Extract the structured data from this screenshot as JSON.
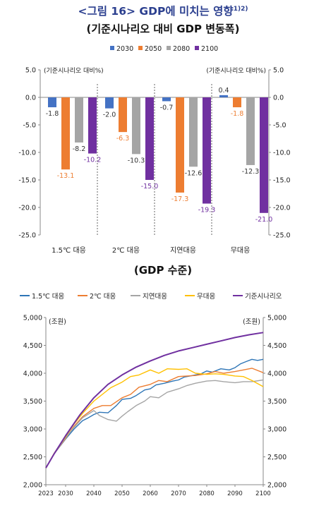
{
  "figure_title": "<그림 16> GDP에 미치는 영향",
  "figure_title_sup": "1)2)",
  "colors": {
    "s2030": "#4472c4",
    "s2050": "#ed7d31",
    "s2080": "#a5a5a5",
    "s2100": "#7030a0",
    "line1": "#2e75b6",
    "line2": "#ed7d31",
    "line3": "#a5a5a5",
    "line4": "#ffc000",
    "line5": "#7030a0"
  },
  "chart_data": [
    {
      "type": "bar",
      "title": "(기준시나리오 대비 GDP 변동폭)",
      "left_unit": "(기준시나리오 대비%)",
      "right_unit": "(기준시나리오 대비%)",
      "categories": [
        "1.5℃ 대응",
        "2℃ 대응",
        "지연대응",
        "무대응"
      ],
      "ylim": [
        -25.0,
        5.0
      ],
      "yticks": [
        "5.0",
        "0.0",
        "-5.0",
        "-10.0",
        "-15.0",
        "-20.0",
        "-25.0"
      ],
      "series": [
        {
          "name": "2030",
          "values": [
            -1.8,
            -2.0,
            -0.7,
            0.4
          ],
          "labels": [
            "-1.8",
            "-2.0",
            "-0.7",
            "0.4"
          ]
        },
        {
          "name": "2050",
          "values": [
            -13.1,
            -6.3,
            -17.3,
            -1.8
          ],
          "labels": [
            "-13.1",
            "-6.3",
            "-17.3",
            "-1.8"
          ]
        },
        {
          "name": "2080",
          "values": [
            -8.2,
            -10.3,
            -12.6,
            -12.3
          ],
          "labels": [
            "-8.2",
            "-10.3",
            "-12.6",
            "-12.3"
          ]
        },
        {
          "name": "2100",
          "values": [
            -10.2,
            -15.0,
            -19.3,
            -21.0
          ],
          "labels": [
            "-10.2",
            "-15.0",
            "-19.3",
            "-21.0"
          ]
        }
      ],
      "grid": false,
      "legend": "top"
    },
    {
      "type": "line",
      "title": "(GDP 수준)",
      "left_unit": "(조원)",
      "right_unit": "(조원)",
      "x_ticks": [
        "2023",
        "2030",
        "2040",
        "2050",
        "2060",
        "2070",
        "2080",
        "2090",
        "2100"
      ],
      "ylim": [
        2000,
        5000
      ],
      "yticks": [
        "5,000",
        "4,500",
        "4,000",
        "3,500",
        "3,000",
        "2,500",
        "2,000"
      ],
      "legend": "top",
      "grid": false,
      "series": [
        {
          "name": "1.5℃ 대응",
          "x": [
            2023,
            2026,
            2030,
            2033,
            2036,
            2038,
            2040,
            2042,
            2045,
            2048,
            2050,
            2053,
            2055,
            2058,
            2060,
            2062,
            2065,
            2068,
            2070,
            2072,
            2075,
            2078,
            2080,
            2082,
            2085,
            2088,
            2090,
            2092,
            2094,
            2096,
            2098,
            2100
          ],
          "y": [
            2300,
            2560,
            2820,
            3000,
            3150,
            3200,
            3260,
            3300,
            3290,
            3420,
            3530,
            3550,
            3600,
            3700,
            3720,
            3790,
            3820,
            3860,
            3880,
            3930,
            3960,
            3990,
            4040,
            4020,
            4080,
            4060,
            4100,
            4170,
            4210,
            4250,
            4230,
            4250
          ]
        },
        {
          "name": "2℃ 대응",
          "x": [
            2023,
            2026,
            2030,
            2033,
            2036,
            2040,
            2043,
            2046,
            2050,
            2053,
            2056,
            2060,
            2063,
            2066,
            2070,
            2073,
            2076,
            2080,
            2083,
            2086,
            2090,
            2093,
            2096,
            2100
          ],
          "y": [
            2300,
            2560,
            2830,
            3050,
            3220,
            3370,
            3420,
            3420,
            3560,
            3620,
            3750,
            3800,
            3870,
            3850,
            3940,
            3950,
            3960,
            3990,
            4030,
            4000,
            4030,
            4060,
            4090,
            4010
          ]
        },
        {
          "name": "지연대응",
          "x": [
            2023,
            2026,
            2030,
            2033,
            2036,
            2040,
            2042,
            2045,
            2048,
            2050,
            2052,
            2055,
            2058,
            2060,
            2063,
            2066,
            2070,
            2073,
            2076,
            2080,
            2083,
            2086,
            2090,
            2093,
            2096,
            2100
          ],
          "y": [
            2300,
            2560,
            2840,
            3030,
            3200,
            3330,
            3240,
            3170,
            3140,
            3230,
            3310,
            3420,
            3500,
            3580,
            3560,
            3660,
            3720,
            3780,
            3820,
            3860,
            3870,
            3850,
            3830,
            3850,
            3850,
            3880
          ]
        },
        {
          "name": "무대응",
          "x": [
            2023,
            2026,
            2030,
            2033,
            2036,
            2040,
            2043,
            2046,
            2050,
            2053,
            2056,
            2060,
            2063,
            2066,
            2070,
            2073,
            2076,
            2080,
            2083,
            2086,
            2090,
            2093,
            2096,
            2100
          ],
          "y": [
            2300,
            2570,
            2860,
            3090,
            3280,
            3500,
            3620,
            3740,
            3840,
            3940,
            3970,
            4060,
            4000,
            4080,
            4070,
            4080,
            4000,
            3980,
            3990,
            3980,
            3950,
            3940,
            3870,
            3760
          ]
        },
        {
          "name": "기준시나리오",
          "x": [
            2023,
            2026,
            2030,
            2035,
            2040,
            2045,
            2050,
            2055,
            2060,
            2065,
            2070,
            2075,
            2080,
            2085,
            2090,
            2095,
            2100
          ],
          "y": [
            2300,
            2560,
            2880,
            3250,
            3560,
            3800,
            3970,
            4110,
            4220,
            4320,
            4400,
            4460,
            4520,
            4580,
            4640,
            4690,
            4730
          ]
        }
      ]
    }
  ]
}
